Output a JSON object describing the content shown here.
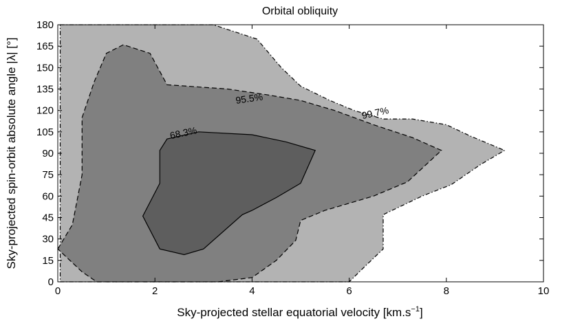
{
  "chart_data": {
    "type": "contour",
    "title": "Orbital obliquity",
    "xlabel": "Sky-projected stellar equatorial velocity [km.s",
    "xlabel_sup": "−1",
    "xlabel_end": "]",
    "ylabel": "Sky-projected spin-orbit absolute angle |λ| [°]",
    "xlim": [
      0,
      10
    ],
    "ylim": [
      0,
      180
    ],
    "xticks": [
      0,
      2,
      4,
      6,
      8,
      10
    ],
    "yticks": [
      0,
      15,
      30,
      45,
      60,
      75,
      90,
      105,
      120,
      135,
      150,
      165,
      180
    ],
    "background_color": "#ffffff",
    "regions": [
      {
        "level": "99.7%",
        "fill": "#b3b3b3",
        "line_style": "dash-dot",
        "points": [
          [
            0.05,
            180
          ],
          [
            3.2,
            180
          ],
          [
            4.1,
            170
          ],
          [
            4.6,
            150
          ],
          [
            5.0,
            137
          ],
          [
            5.6,
            127
          ],
          [
            6.1,
            120
          ],
          [
            6.7,
            114
          ],
          [
            7.3,
            114
          ],
          [
            8.0,
            110
          ],
          [
            8.5,
            102
          ],
          [
            9.2,
            92
          ],
          [
            8.7,
            82
          ],
          [
            8.1,
            68
          ],
          [
            7.5,
            60
          ],
          [
            6.7,
            47
          ],
          [
            6.7,
            23
          ],
          [
            6.3,
            10
          ],
          [
            6.0,
            0
          ],
          [
            0.05,
            0
          ]
        ]
      },
      {
        "level": "95.5%",
        "fill": "#808080",
        "line_style": "dashed",
        "points": [
          [
            0.0,
            23
          ],
          [
            0.3,
            40
          ],
          [
            0.5,
            75
          ],
          [
            0.5,
            115
          ],
          [
            0.75,
            140
          ],
          [
            1.0,
            160
          ],
          [
            1.35,
            166
          ],
          [
            1.9,
            160
          ],
          [
            2.25,
            138
          ],
          [
            3.5,
            135
          ],
          [
            4.3,
            131
          ],
          [
            5.0,
            127
          ],
          [
            5.7,
            120
          ],
          [
            6.5,
            110
          ],
          [
            7.3,
            101
          ],
          [
            7.9,
            92
          ],
          [
            7.2,
            70
          ],
          [
            6.5,
            60
          ],
          [
            5.5,
            50
          ],
          [
            5.0,
            43
          ],
          [
            4.9,
            29
          ],
          [
            4.5,
            15
          ],
          [
            4.0,
            3
          ],
          [
            3.3,
            0
          ],
          [
            0.8,
            0
          ],
          [
            0.5,
            7
          ],
          [
            0.0,
            23
          ]
        ]
      },
      {
        "level": "68.3%",
        "fill": "#5e5e5e",
        "line_style": "solid",
        "points": [
          [
            2.1,
            92
          ],
          [
            2.25,
            100
          ],
          [
            2.9,
            105
          ],
          [
            4.0,
            103
          ],
          [
            4.7,
            98
          ],
          [
            5.3,
            92
          ],
          [
            5.0,
            69
          ],
          [
            4.5,
            59
          ],
          [
            4.0,
            50
          ],
          [
            3.8,
            47
          ],
          [
            3.0,
            23
          ],
          [
            2.6,
            19
          ],
          [
            2.1,
            23
          ],
          [
            1.75,
            46
          ],
          [
            2.1,
            69
          ],
          [
            2.1,
            92
          ]
        ]
      }
    ],
    "labels": [
      {
        "text": "95.5%",
        "x": 3.95,
        "y": 126,
        "rotation": -8
      },
      {
        "text": "99.7%",
        "x": 6.55,
        "y": 116,
        "rotation": -12
      },
      {
        "text": "68.3%",
        "x": 2.6,
        "y": 102,
        "rotation": -12
      }
    ]
  }
}
